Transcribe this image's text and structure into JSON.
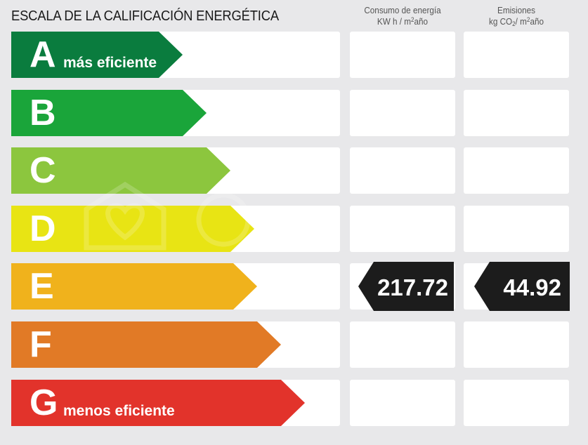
{
  "header": {
    "title": "ESCALA DE LA CALIFICACIÓN ENERGÉTICA",
    "col1_line1": "Consumo de energía",
    "col1_line2a": "KW h / m",
    "col1_line2_sup": "2",
    "col1_line2b": "año",
    "col2_line1": "Emisiones",
    "col2_line2a": "kg CO",
    "col2_line2_sub": "2",
    "col2_line2b": "/ m",
    "col2_line2_sup": "2",
    "col2_line2c": "año"
  },
  "ratings": [
    {
      "letter": "A",
      "label": "más eficiente",
      "color": "#0a7c3e"
    },
    {
      "letter": "B",
      "label": "",
      "color": "#1aa53a"
    },
    {
      "letter": "C",
      "label": "",
      "color": "#8cc63e"
    },
    {
      "letter": "D",
      "label": "",
      "color": "#e8e414"
    },
    {
      "letter": "E",
      "label": "",
      "color": "#f0b21c"
    },
    {
      "letter": "F",
      "label": "",
      "color": "#e17a26"
    },
    {
      "letter": "G",
      "label": "menos eficiente",
      "color": "#e2332b"
    }
  ],
  "current": {
    "rating": "E",
    "consumo": "217.72",
    "emisiones": "44.92",
    "badge_color": "#1c1c1c"
  },
  "icons": {
    "watermark": "house-heart-watermark-icon"
  }
}
